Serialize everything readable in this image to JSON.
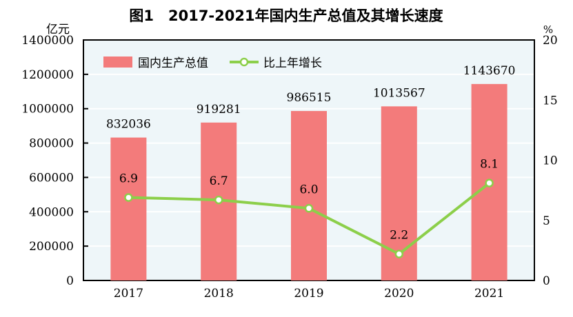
{
  "chart_data": {
    "type": "bar+line",
    "title": "图1　2017-2021年国内生产总值及其增长速度",
    "categories": [
      "2017",
      "2018",
      "2019",
      "2020",
      "2021"
    ],
    "left_axis": {
      "unit": "亿元",
      "ylim": [
        0,
        1400000
      ],
      "ticks": [
        "0",
        "200000",
        "400000",
        "600000",
        "800000",
        "1000000",
        "1200000",
        "1400000"
      ]
    },
    "right_axis": {
      "unit": "%",
      "ylim": [
        0,
        20
      ],
      "ticks": [
        "0",
        "5",
        "10",
        "15",
        "20"
      ]
    },
    "series": [
      {
        "name": "国内生产总值",
        "kind": "bar",
        "axis": "left",
        "color": "#f37b7b",
        "values": [
          832036,
          919281,
          986515,
          1013567,
          1143670
        ],
        "labels": [
          "832036",
          "919281",
          "986515",
          "1013567",
          "1143670"
        ]
      },
      {
        "name": "比上年增长",
        "kind": "line",
        "axis": "right",
        "color": "#8ccf4a",
        "values": [
          6.9,
          6.7,
          6.0,
          2.2,
          8.1
        ],
        "labels": [
          "6.9",
          "6.7",
          "6.0",
          "2.2",
          "8.1"
        ]
      }
    ],
    "legend": "top-left",
    "grid": true,
    "plot_background": "#eef6f9"
  }
}
